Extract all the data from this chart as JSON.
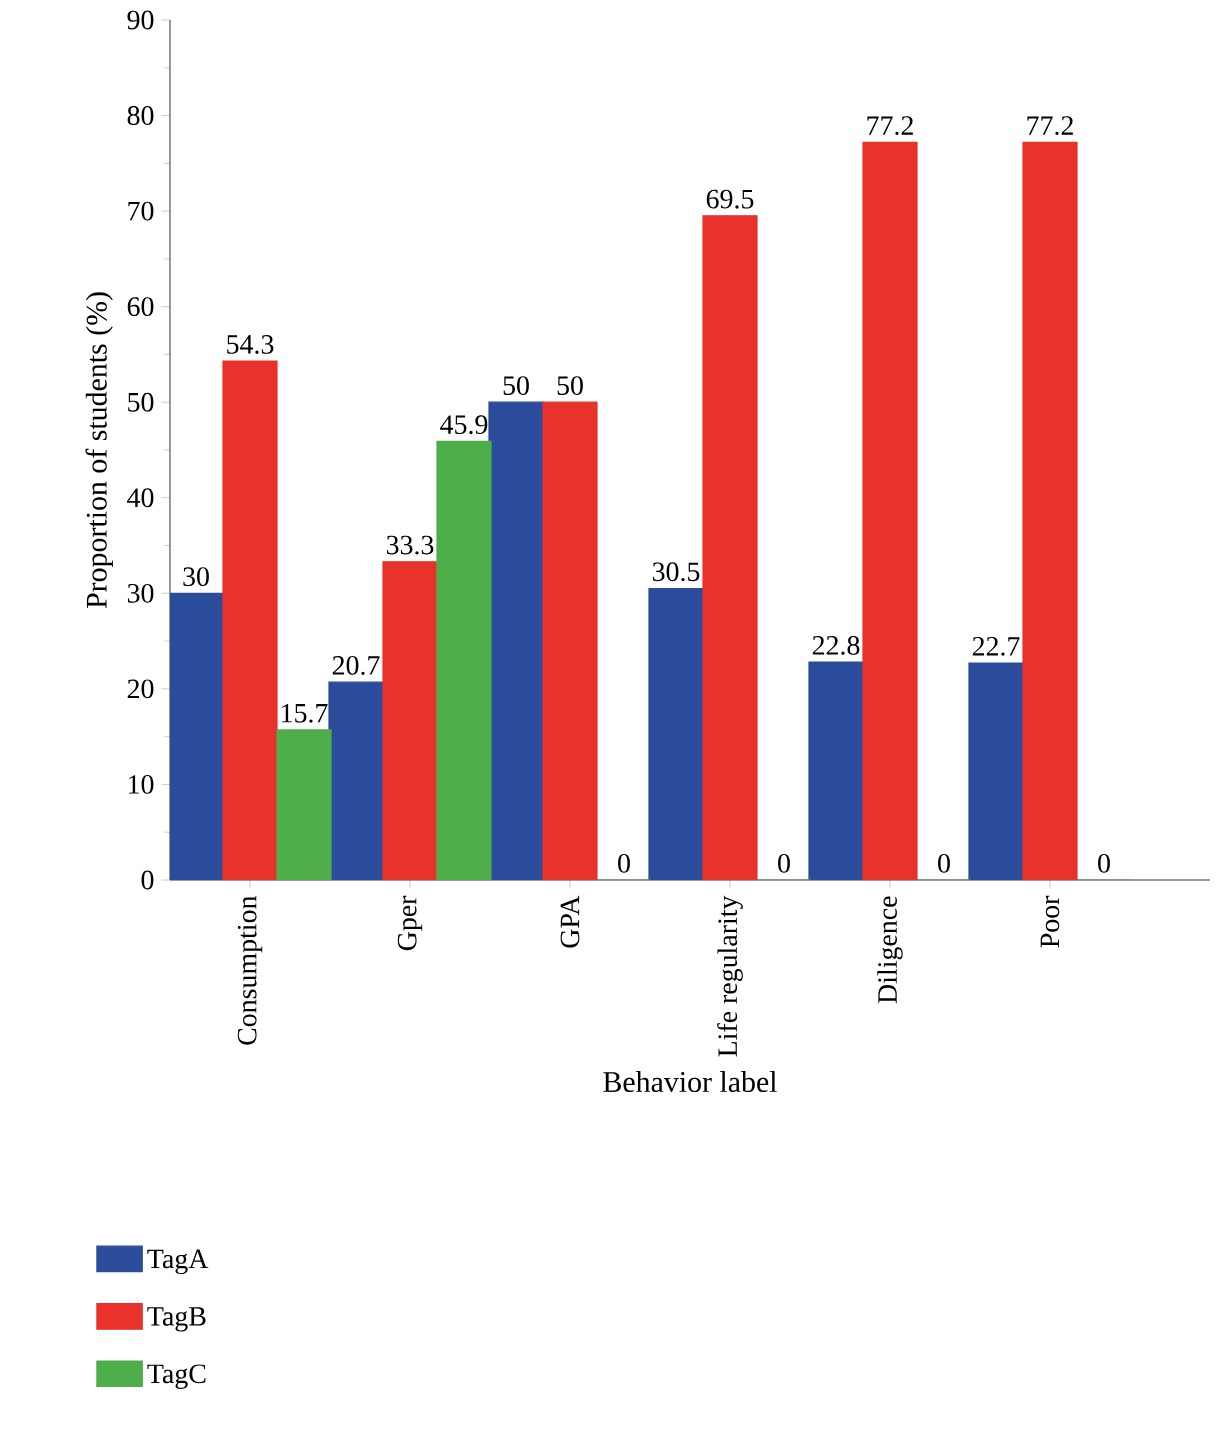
{
  "chart_data": {
    "type": "bar",
    "xlabel": "Behavior label",
    "ylabel": "Proportion of students (%)",
    "categories": [
      "Consumption",
      "Gper",
      "GPA",
      "Life regularity",
      "Diligence",
      "Poor"
    ],
    "series": [
      {
        "name": "TagA",
        "color": "#2b4c9b",
        "values": [
          30,
          20.7,
          50,
          30.5,
          22.8,
          22.7
        ]
      },
      {
        "name": "TagB",
        "color": "#e8322b",
        "values": [
          54.3,
          33.3,
          50,
          69.5,
          77.2,
          77.2
        ]
      },
      {
        "name": "TagC",
        "color": "#4dae4a",
        "values": [
          15.7,
          45.9,
          0,
          0,
          0,
          0
        ]
      }
    ],
    "ylim": [
      0,
      90
    ],
    "yticks": [
      0,
      10,
      20,
      30,
      40,
      50,
      60,
      70,
      80,
      90
    ],
    "data_labels": true,
    "legend": "bottom left",
    "grid": false
  }
}
